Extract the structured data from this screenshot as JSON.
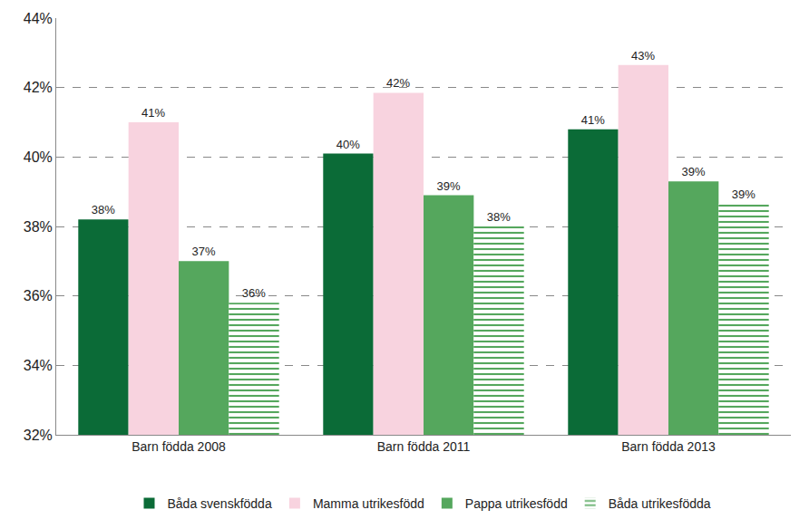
{
  "chart_data": {
    "type": "bar",
    "categories": [
      "Barn födda 2008",
      "Barn födda 2011",
      "Barn födda 2013"
    ],
    "series": [
      {
        "name": "Båda svenskfödda",
        "color": "#0b6b37",
        "values": [
          38.2,
          40.1,
          40.8
        ],
        "value_labels": [
          "38%",
          "40%",
          "41%"
        ]
      },
      {
        "name": "Mamma utrikesfödd",
        "color": "#f8d3df",
        "values": [
          41.0,
          41.85,
          42.65
        ],
        "value_labels": [
          "41%",
          "42%",
          "43%"
        ]
      },
      {
        "name": "Pappa utrikesfödd",
        "color": "#55a75d",
        "values": [
          37.0,
          38.9,
          39.3
        ],
        "value_labels": [
          "37%",
          "39%",
          "39%"
        ]
      },
      {
        "name": "Båda utrikesfödda",
        "color": "#55a75d",
        "marker": "dashed",
        "values": [
          35.8,
          38.0,
          38.65
        ],
        "value_labels": [
          "36%",
          "38%",
          "39%"
        ]
      }
    ],
    "ylim": [
      32,
      44
    ],
    "yticks": [
      {
        "value": 32,
        "label": "32%"
      },
      {
        "value": 34,
        "label": "34%"
      },
      {
        "value": 36,
        "label": "36%"
      },
      {
        "value": 38,
        "label": "38%"
      },
      {
        "value": 40,
        "label": "40%"
      },
      {
        "value": 42,
        "label": "42%"
      },
      {
        "value": 44,
        "label": "44%"
      }
    ],
    "grid": true,
    "data_labels": true,
    "legend": "bottom"
  }
}
